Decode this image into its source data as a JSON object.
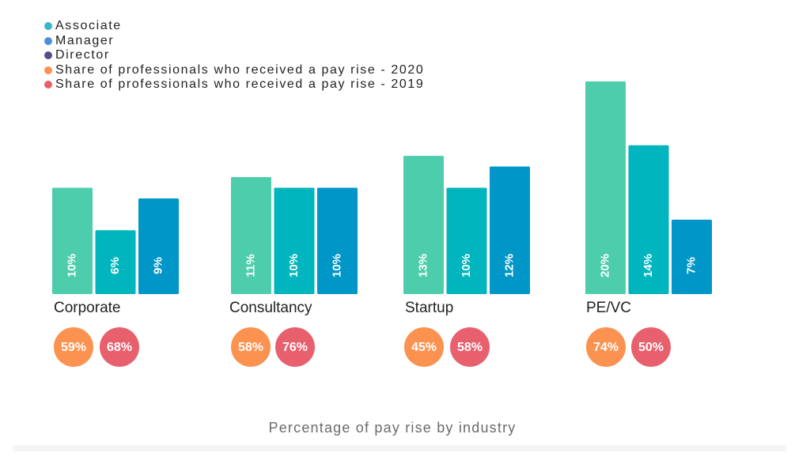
{
  "chart_data": {
    "type": "bar",
    "title": "Percentage of pay rise by industry",
    "categories": [
      "Corporate",
      "Consultancy",
      "Startup",
      "PE/VC"
    ],
    "series": [
      {
        "name": "Associate",
        "color": "#4ecdac",
        "values": [
          10,
          11,
          13,
          20
        ],
        "labels": [
          "10%",
          "11%",
          "13%",
          "20%"
        ]
      },
      {
        "name": "Manager",
        "color": "#00b5bd",
        "values": [
          6,
          10,
          10,
          14
        ],
        "labels": [
          "6%",
          "10%",
          "10%",
          "14%"
        ]
      },
      {
        "name": "Director",
        "color": "#0096c7",
        "values": [
          9,
          10,
          12,
          7
        ],
        "labels": [
          "9%",
          "10%",
          "12%",
          "7%"
        ]
      }
    ],
    "share_series": [
      {
        "name": "Share of professionals who received a pay rise - 2020",
        "color": "#fb9250",
        "values": [
          59,
          58,
          45,
          74
        ],
        "labels": [
          "59%",
          "58%",
          "45%",
          "74%"
        ]
      },
      {
        "name": "Share of professionals who received a pay rise - 2019",
        "color": "#e8606e",
        "values": [
          68,
          76,
          58,
          50
        ],
        "labels": [
          "68%",
          "76%",
          "58%",
          "50%"
        ]
      }
    ],
    "legend": [
      {
        "label": "Associate",
        "color": "#3ab5c8"
      },
      {
        "label": "Manager",
        "color": "#4a90d9"
      },
      {
        "label": "Director",
        "color": "#5c4b8a"
      },
      {
        "label": "Share of professionals who received a pay rise - 2020",
        "color": "#fb9250"
      },
      {
        "label": "Share of professionals who received a pay rise - 2019",
        "color": "#e8606e"
      }
    ],
    "legend_position": "top-left",
    "ylim": [
      0,
      20
    ],
    "grid": false
  }
}
